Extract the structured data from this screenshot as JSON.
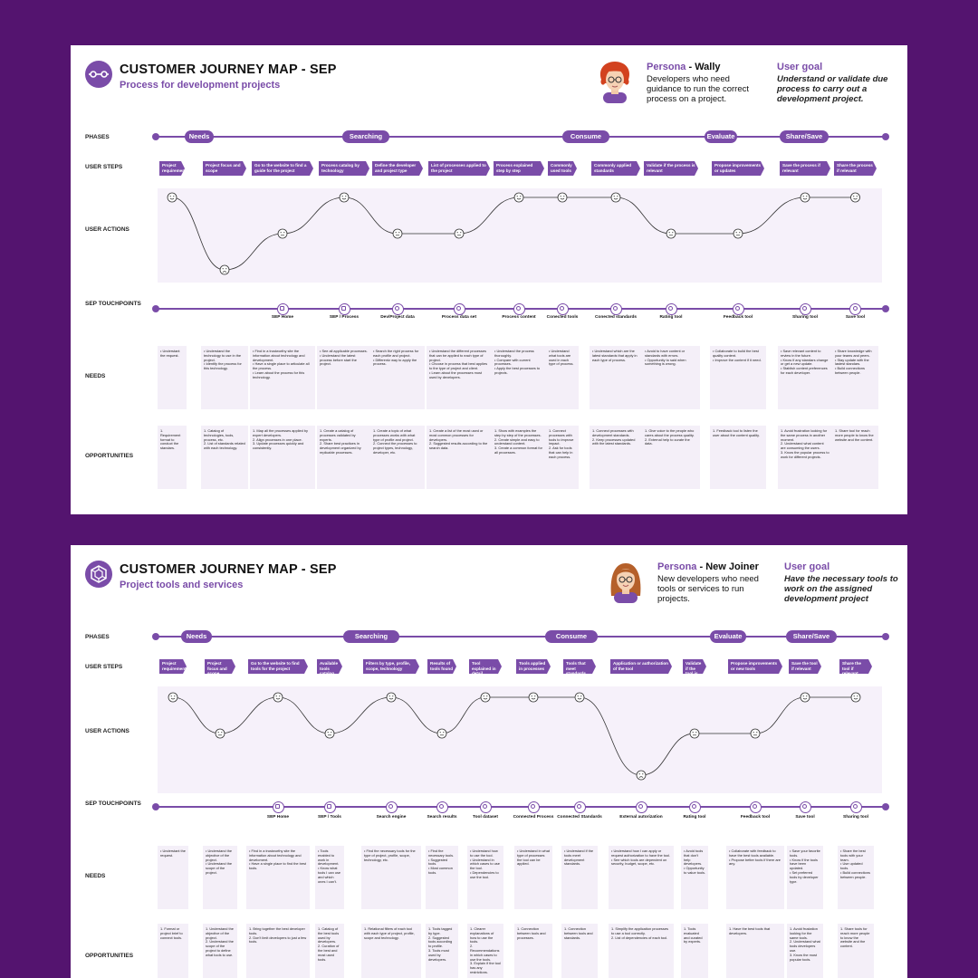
{
  "columns_note_free": true,
  "cards": [
    {
      "title": "CUSTOMER JOURNEY MAP - SEP",
      "subtitle": "Process for development projects",
      "persona_label": "Persona",
      "persona_name": "Wally",
      "persona_desc": "Developers who need guidance to run the correct process on a project.",
      "goal_label": "User goal",
      "goal_text": "Understand or validate due process to carry out a development project.",
      "row_labels": {
        "phases": "PHASES",
        "steps": "USER STEPS",
        "actions": "USER ACTIONS",
        "touchpoints": "SEP TOUCHPOINTS",
        "needs": "NEEDS",
        "opportunities": "OPPORTUNITIES"
      },
      "phases": [
        "Needs",
        "Searching",
        "Consume",
        "Evaluate",
        "Share/Save"
      ],
      "steps": [
        "Project requirement",
        "Project focus and scope",
        "Go to the website to find a guide for the project",
        "Process catalog by technology",
        "Define the developer and project type",
        "List of processes applied to the project",
        "Process explained step by step",
        "Commonly used tools",
        "Commonly applied standards",
        "Validate if the process is relevant",
        "Propose improvements or updates",
        "Save the process if relevant",
        "Share the process if relevant"
      ],
      "emotions": [
        2,
        0,
        1,
        2,
        1,
        1,
        2,
        2,
        2,
        1,
        1,
        2,
        2
      ],
      "touchpoints": [
        "",
        "",
        "SEP Home",
        "SEP / Process",
        "Dev/Project data",
        "Process data set",
        "Process content",
        "Conected tools",
        "Conected standards",
        "Rating tool",
        "Feedback tool",
        "Sharing tool",
        "Save tool"
      ],
      "needs": [
        "• Understant the request.",
        "• Understand the technology to use in the project.\n• Identify the process for this technology.",
        "• Find in a trustworthy site the information about technology and development.\n• Have a single place to articulate all the process.\n• Learn about the process for this technology.",
        "• See all applicable processes.\n• Understand the latest process before start the project.",
        "• Search the right process for each profile and project.\n• Differentz way to apply the process.",
        "• Understand the different processes that can be applied to each type of project.\n• Choose in process that best applies to the type of project and client.\n• Learn about the processes most used by developers.",
        "• Understand the process thoroughly.\n• Compare with current processes.\n• Apply the best processes to projects.",
        "• Understand what tools are used in each type of process.",
        "• Understand which are the latest standards that apply in each type of process.",
        "• Avoid to have content or standards with errors.\n• Opportunity to said when something is wrong.",
        "• Collaborate to build the best quality content.\n• Improve the content if it need.",
        "• Save relevant content to review in the future.\n• Know if any standars change or get a new update.\n• Stablish content preferences for each developer.",
        "• Share knowledge with your teams and peers.\n• Stay update with the lastest standars.\n• Build connections between people."
      ],
      "opportunities": [
        "1. Requirement format to conduct the standars.",
        "1. Catalog of technologies, tools, process, etc.\n2. List of standards related with each technology.",
        "1. Map all the processes applied by expert developers.\n2. Align processes in one place.\n3. Update processes quickly and consistently.",
        "1. Create a catalog of processes validated by experts.\n2. Share best practices in development organized by replicable processes.",
        "1. Create a topic of what processes works with what type of profile and project.\n2. Connect the processes to project types, technology, developer, etc.",
        "1. Create a list of the most used or most common processes for developers.\n2. Suggested results according to the search data.",
        "1. Show with examples the step by step of the processes.\n2. Create simple and easy to understand content.\n3. Create a common format for all processes.",
        "1. Connect processes with tools to improve impact.\n2. Ask for tools that can help in each process.",
        "1. Connect processes with development standards.\n2. Keep processes updated with the latest standards.",
        "1. Give voice to the people who cares about the process quality.\n2. External help to curate the data.",
        "1. Feedback tool to listen the user about the content quality.",
        "1. Avoid frustration looking for the same process in another moment.\n2. Understand what content are consuming the users.\n3. Know the popular process to work for different projects.",
        "1. Share tool for reach more people to know the website and the content."
      ]
    },
    {
      "title": "CUSTOMER JOURNEY MAP - SEP",
      "subtitle": "Project tools and services",
      "persona_label": "Persona",
      "persona_name": "New Joiner",
      "persona_desc": "New developers who need tools or services to run projects.",
      "goal_label": "User goal",
      "goal_text": "Have the necessary tools to work on the assigned development project",
      "row_labels": {
        "phases": "PHASES",
        "steps": "USER STEPS",
        "actions": "USER ACTIONS",
        "touchpoints": "SEP TOUCHPOINTS",
        "needs": "NEEDS",
        "opportunities": "OPPORTUNITIES"
      },
      "phases": [
        "Needs",
        "Searching",
        "Consume",
        "Evaluate",
        "Share/Save"
      ],
      "steps": [
        "Project requirement",
        "Project focus and scope",
        "Go to the website to find tools for the project",
        "Available tools catalog",
        "Filters by type, profile, scope, technology",
        "Results of tools found",
        "Tool explained in detail",
        "Tools applied in processes",
        "Tools that meet standards",
        "Application or authorization of the tool",
        "Validate if the tool is relevant",
        "Propose improvements or new tools",
        "Save the tool if relevant",
        "Share the tool if relevant"
      ],
      "emotions": [
        2,
        1,
        2,
        1,
        2,
        1,
        2,
        2,
        2,
        0,
        1,
        1,
        2,
        2
      ],
      "touchpoints": [
        "",
        "",
        "SEP Home",
        "SEP / Tools",
        "Search engine",
        "Search results",
        "Tool dataset",
        "Connected Process",
        "Connected Standards",
        "External autorization",
        "Rating tool",
        "Feedback tool",
        "Save tool",
        "Sharing tool"
      ],
      "needs": [
        "• Understant the request.",
        "• Understand the objective of the project.\n• Understand the scope of the project.",
        "• Find in a trustworthy site the information about technology and develoment.\n• Have a single place to find the best tools.",
        "• Tools enabled to work in development.\n• Know what tools I can use and which ones I can't.",
        "• Find the necessary tools for the type of project, profile, scope, technology, etc.",
        "• Find the necessary tools.\n• Suggested tools.\n• Most common tools.",
        "• Understand how to use the tool.\n• Understand in which cases to use the tool.\n• Dependencies to use the tool.",
        "• Understand in what type of processes the tool can be applied.",
        "• Understand if the tools meet development standards.",
        "• Understand how I can apply or request authorization to have the tool.\n• See which tools are dependent on security, budget, scope, etc.",
        "• Avoid tools that don't help developers.\n• Opportunity to value tools.",
        "• Collaborate with feedback to have the best tools available.\n• Propose better tools if there are any.",
        "• Save your favorite tools.\n• Know if the tools have been updated.\n• Set preferred tools by developer type.",
        "• Share the best tools with your team.\n• Use updated tools.\n• Build connections between people."
      ],
      "opportunities": [
        "1. Format or project brief to connect tools.",
        "1. Understand the objective of the project.\n2. Understand the scope of the project to define what tools to use.",
        "1. Bring together the best developer tools.\n2. Don't limit developers to just a few tools.",
        "1. Catalog of the best tools used by developers.\n2. Curation of the best and most used tools.",
        "1. Relational filters of each tool with each type of project, profile, scope and technology.",
        "1. Tools tagged by type.\n2. Suggested tools according to profile.\n3. Tools most used by developers.",
        "1. Clearer explanations of how to use the tools.\n2. Recommendations in which cases to use the tools.\n3. Explain if the tool has any restrictions.",
        "1. Connection between tools and processes.",
        "1. Connection between tools and standards.",
        "1. Simplify the application processes to use a tool correctly.\n2. List of dependencies of each tool.",
        "1. Tools evaluated and curated by experts.",
        "1. Have the best tools that developers.",
        "1. Avoid frustation looking for the same tools.\n2. Understand what tools developers use.\n3. Know the most popular tools.",
        "1. Share tools for reach more people to know the website and the content."
      ]
    }
  ]
}
